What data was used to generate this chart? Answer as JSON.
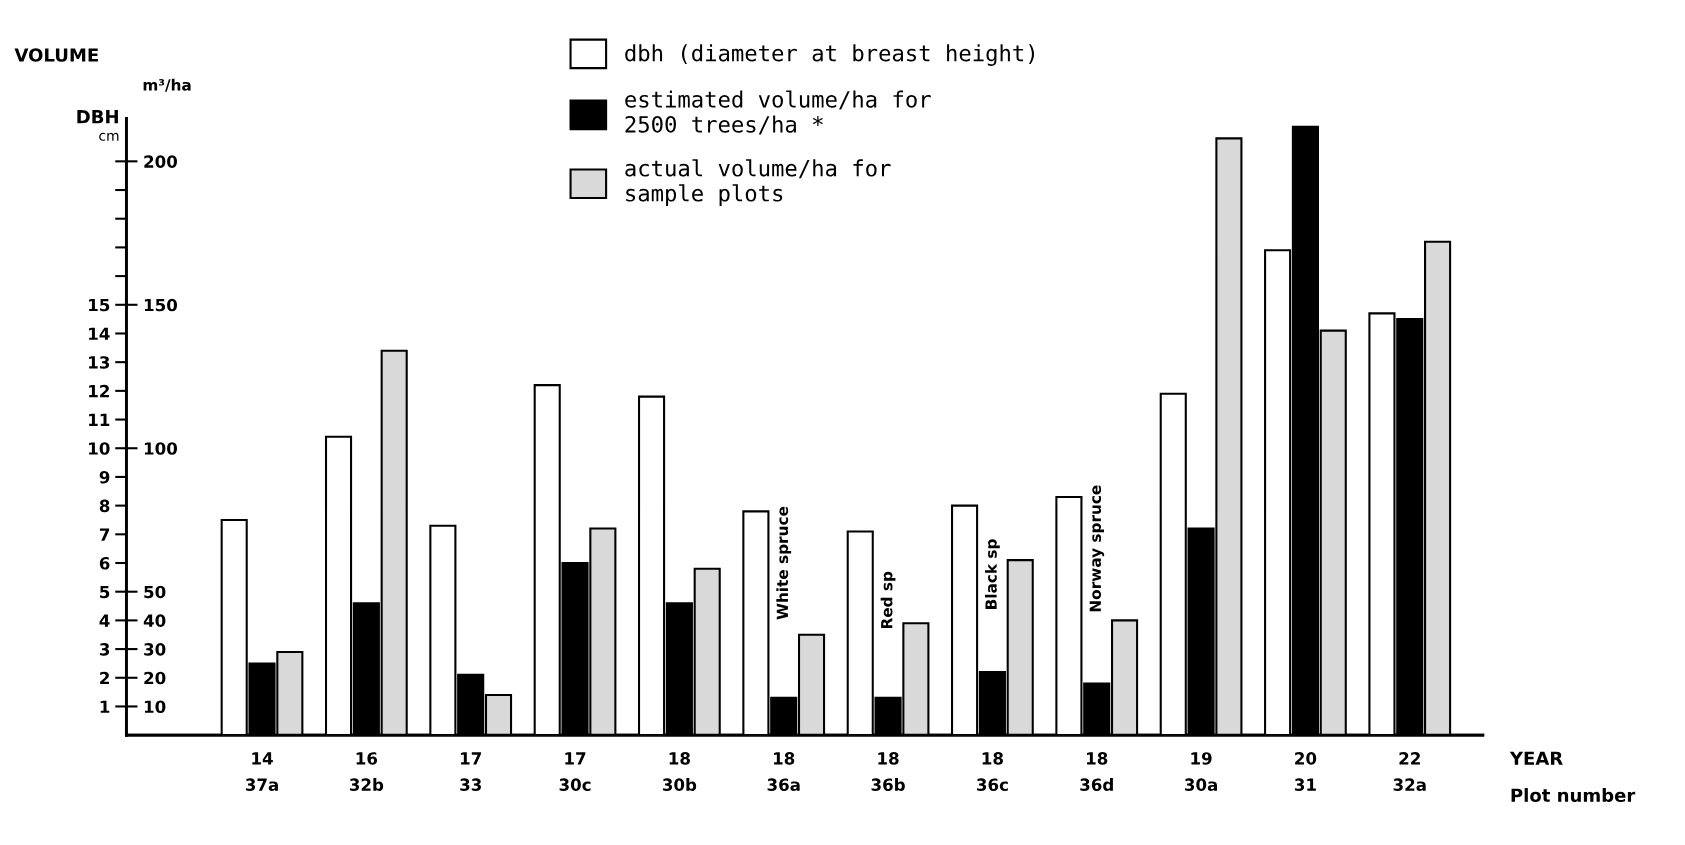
{
  "chart_data": {
    "type": "bar",
    "categories": [
      "14\n37a",
      "16\n32b",
      "17\n33",
      "17\n30c",
      "18\n30b",
      "18\n36a",
      "18\n36b",
      "18\n36c",
      "18\n36d",
      "19\n30a",
      "20\n31",
      "22\n32a"
    ],
    "series": [
      {
        "name": "dbh (diameter at breast height)",
        "color": "#ffffff",
        "axis": "y2",
        "values": [
          7.5,
          10.4,
          7.3,
          12.2,
          11.8,
          7.8,
          7.1,
          8.0,
          8.3,
          11.9,
          16.9,
          14.7
        ]
      },
      {
        "name": "estimated volume/ha for\n2500 trees/ha *",
        "color": "#000000",
        "values": [
          25,
          46,
          21,
          60,
          46,
          13,
          13,
          22,
          18,
          72,
          212,
          145
        ]
      },
      {
        "name": "actual volume/ha for\nsample plots",
        "color": "#d9d9d9",
        "values": [
          29,
          134,
          14,
          72,
          58,
          35,
          39,
          61,
          40,
          208,
          141,
          172
        ]
      }
    ],
    "ylabel": "m³/ha",
    "y2label": "cm",
    "ylim": [
      0,
      215
    ],
    "yticks": [
      10,
      20,
      30,
      40,
      50,
      100,
      150,
      200
    ],
    "y2lim": [
      0,
      21.5
    ],
    "y2ticks": [
      1,
      2,
      3,
      4,
      5,
      6,
      7,
      8,
      9,
      10,
      11,
      12,
      13,
      14,
      15,
      {
        "value": 16,
        "label": null
      },
      {
        "value": 17,
        "label": null
      },
      {
        "value": 18,
        "label": null
      },
      {
        "value": 19,
        "label": null
      },
      {
        "value": 20,
        "label": null
      }
    ],
    "annotations": [
      "VOLUME",
      "DBH",
      "YEAR",
      "Plot number",
      "White spruce",
      "Red sp",
      "Black sp",
      "Norway spruce"
    ],
    "legend": "top",
    "grid": false
  }
}
